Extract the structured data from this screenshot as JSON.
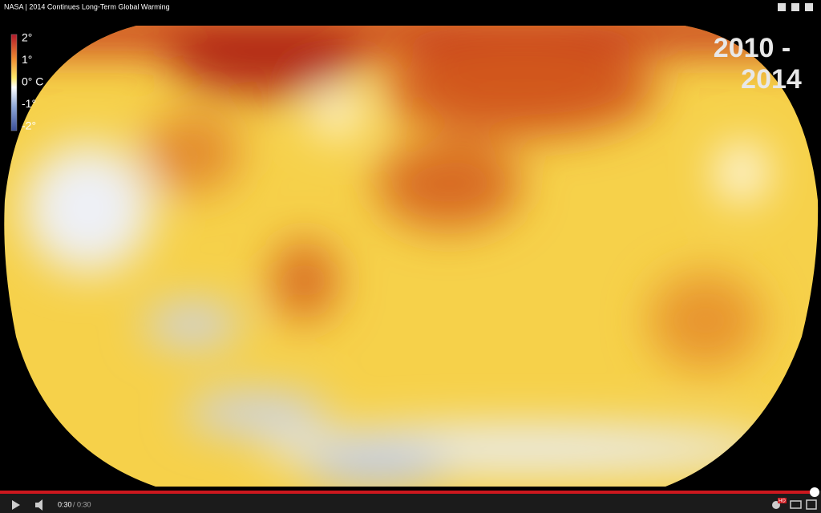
{
  "video": {
    "title": "NASA | 2014 Continues Long-Term Global Warming",
    "legend": {
      "labels": [
        "2°",
        "1°",
        "0° C",
        "-1°",
        "-2°"
      ]
    },
    "period": {
      "start": "2010  -",
      "end": "2014"
    }
  },
  "player": {
    "current_time": "0:30",
    "separator": "/",
    "duration": "0:30",
    "quality_badge": "HD"
  }
}
